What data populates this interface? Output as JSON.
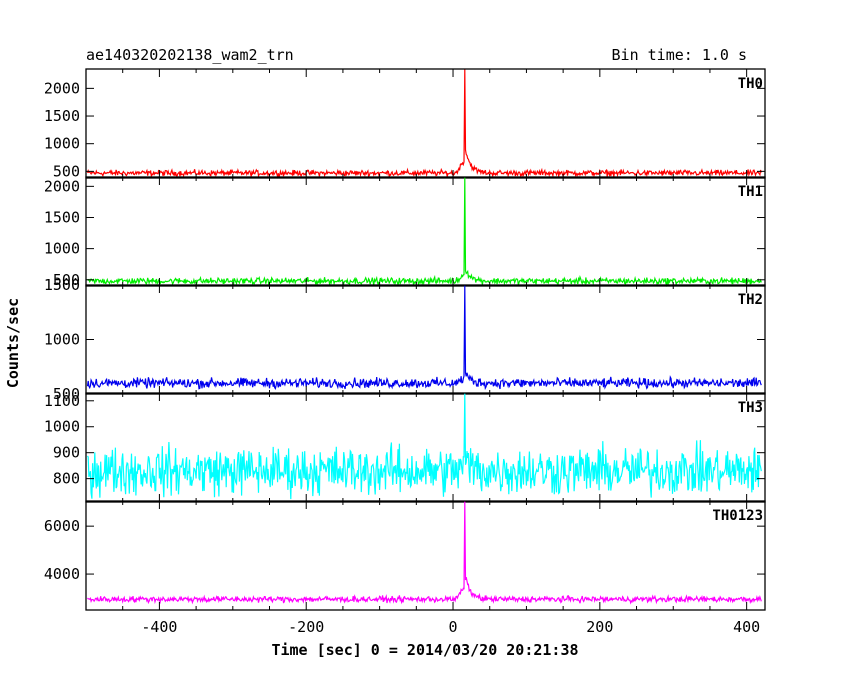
{
  "chart_data": {
    "type": "line",
    "title": "ae140320202138_wam2_trn",
    "subtitle": "Bin time: 1.0 s",
    "xlabel": "Time [sec] 0 = 2014/03/20 20:21:38",
    "ylabel": "Counts/sec",
    "xlim": [
      -500,
      425
    ],
    "x_ticks": [
      -400,
      -200,
      0,
      200,
      400
    ],
    "grid": false,
    "panels": [
      {
        "name": "TH0",
        "color": "#ff0000",
        "ylim": [
          380,
          2350
        ],
        "y_ticks": [
          500,
          1000,
          1500,
          2000
        ],
        "baseline": 470,
        "noise": 25,
        "peak": 2350,
        "peak_time": 16,
        "shoulder": 960,
        "samples": [
          [
            -500,
            470
          ],
          [
            -300,
            470
          ],
          [
            -100,
            470
          ],
          [
            0,
            470
          ],
          [
            10,
            700
          ],
          [
            16,
            2350
          ],
          [
            22,
            960
          ],
          [
            35,
            520
          ],
          [
            100,
            470
          ],
          [
            300,
            470
          ],
          [
            420,
            470
          ]
        ]
      },
      {
        "name": "TH1",
        "color": "#00ee00",
        "ylim": [
          400,
          2150
        ],
        "y_ticks": [
          500,
          1000,
          1500,
          2000
        ],
        "baseline": 480,
        "noise": 25,
        "peak": 2150,
        "peak_time": 16,
        "shoulder": 700,
        "samples": [
          [
            -500,
            480
          ],
          [
            -300,
            480
          ],
          [
            -100,
            480
          ],
          [
            0,
            500
          ],
          [
            10,
            620
          ],
          [
            16,
            2150
          ],
          [
            22,
            700
          ],
          [
            35,
            520
          ],
          [
            100,
            480
          ],
          [
            300,
            480
          ],
          [
            420,
            480
          ]
        ]
      },
      {
        "name": "TH2",
        "color": "#0000ee",
        "ylim": [
          500,
          1500
        ],
        "y_ticks": [
          500,
          1000,
          1500
        ],
        "baseline": 600,
        "noise": 22,
        "peak": 1500,
        "peak_time": 16,
        "shoulder": 700,
        "samples": [
          [
            -500,
            600
          ],
          [
            -300,
            600
          ],
          [
            -100,
            600
          ],
          [
            0,
            610
          ],
          [
            10,
            650
          ],
          [
            16,
            1500
          ],
          [
            22,
            700
          ],
          [
            35,
            620
          ],
          [
            100,
            600
          ],
          [
            300,
            600
          ],
          [
            420,
            600
          ]
        ]
      },
      {
        "name": "TH3",
        "color": "#00ffff",
        "ylim": [
          710,
          1130
        ],
        "y_ticks": [
          800,
          900,
          1000,
          1100
        ],
        "baseline": 830,
        "noise": 45,
        "peak": 1130,
        "peak_time": 16,
        "shoulder": 880,
        "samples": [
          [
            -500,
            830
          ],
          [
            -300,
            830
          ],
          [
            -100,
            830
          ],
          [
            0,
            830
          ],
          [
            10,
            880
          ],
          [
            16,
            1130
          ],
          [
            22,
            880
          ],
          [
            35,
            840
          ],
          [
            100,
            830
          ],
          [
            300,
            830
          ],
          [
            420,
            830
          ]
        ]
      },
      {
        "name": "TH0123",
        "color": "#ff00ff",
        "ylim": [
          2500,
          7050
        ],
        "y_ticks": [
          4000,
          6000
        ],
        "baseline": 2950,
        "noise": 60,
        "peak": 7050,
        "peak_time": 16,
        "shoulder": 4000,
        "samples": [
          [
            -500,
            2950
          ],
          [
            -300,
            2950
          ],
          [
            -100,
            2950
          ],
          [
            0,
            2950
          ],
          [
            10,
            3400
          ],
          [
            16,
            7050
          ],
          [
            22,
            4000
          ],
          [
            35,
            3050
          ],
          [
            100,
            2950
          ],
          [
            300,
            2950
          ],
          [
            420,
            2950
          ]
        ]
      }
    ]
  }
}
